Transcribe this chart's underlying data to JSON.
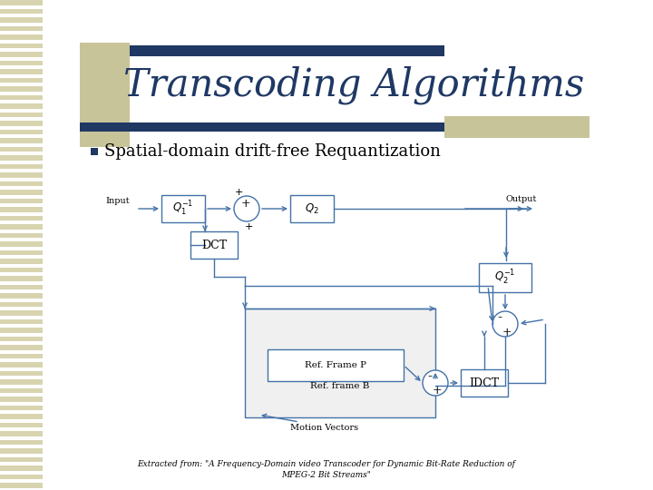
{
  "title": "Transcoding Algorithms",
  "bullet": "Spatial-domain drift-free Requantization",
  "footer_line1": "Extracted from: \"A Frequency-Domain video Transcoder for Dynamic Bit-Rate Reduction of",
  "footer_line2": "MPEG-2 Bit Streams\"",
  "bg_color": "#ffffff",
  "title_color": "#1F3864",
  "bullet_color": "#000000",
  "bar_top_color": "#1F3864",
  "bar_left_color": "#C8C49A",
  "bar_right_color": "#C8C49A",
  "stripe_color": "#D8D4B0",
  "diagram_lc": "#4472A8",
  "black": "#000000"
}
